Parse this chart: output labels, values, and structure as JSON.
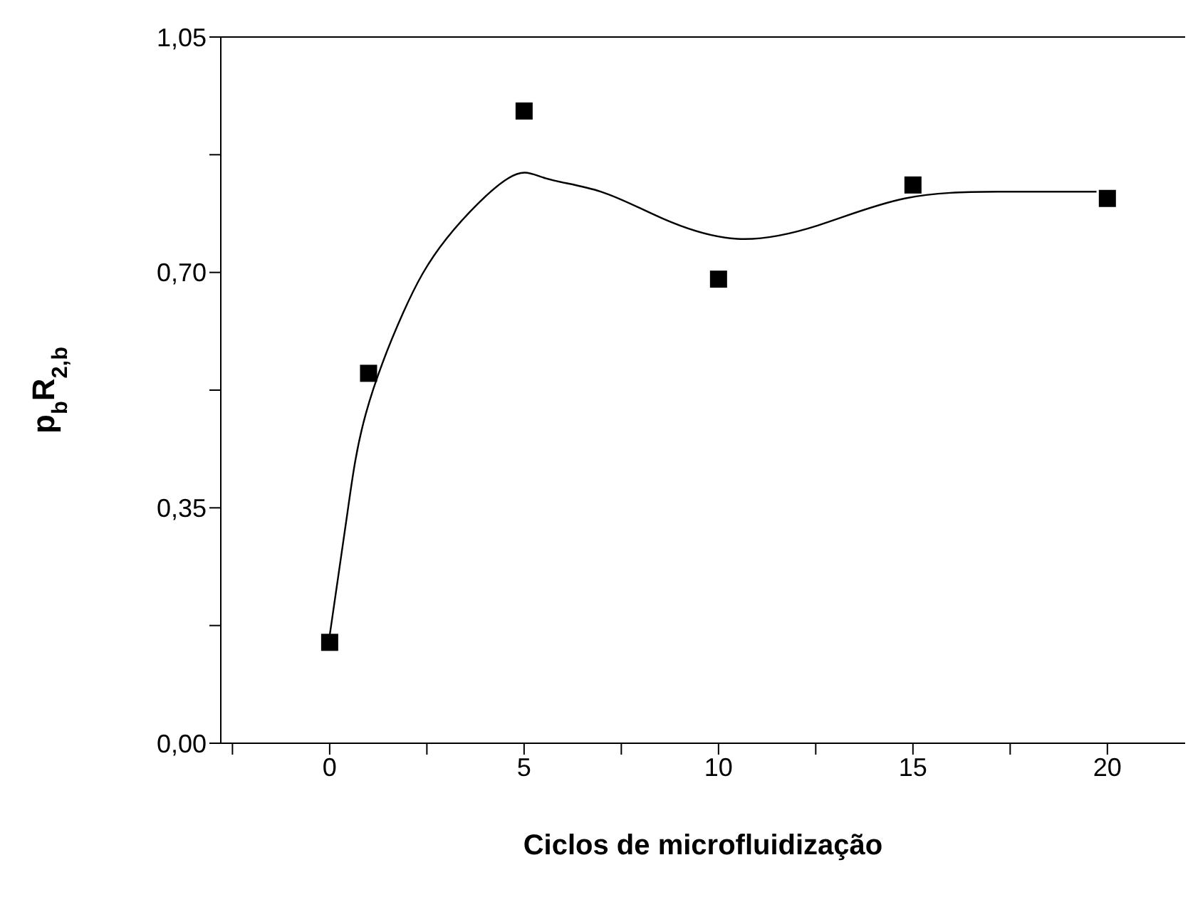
{
  "chart_data": {
    "type": "scatter",
    "xlabel": "Ciclos de microfluidização",
    "ylabel": "p$_{b}$R$_{2,b}$",
    "xlim": [
      -2.8,
      22
    ],
    "xticks": [
      {
        "value": -2.5,
        "label": null
      },
      0,
      {
        "value": 2.5,
        "label": null
      },
      5,
      {
        "value": 7.5,
        "label": null
      },
      10,
      {
        "value": 12.5,
        "label": null
      },
      15,
      {
        "value": 17.5,
        "label": null
      },
      20
    ],
    "ylim": [
      0,
      1.05
    ],
    "yticks": [
      {
        "value": 0,
        "label": "0,00"
      },
      {
        "value": 0.175,
        "label": null
      },
      {
        "value": 0.35,
        "label": "0,35"
      },
      {
        "value": 0.525,
        "label": null
      },
      {
        "value": 0.7,
        "label": "0,70"
      },
      {
        "value": 0.875,
        "label": null
      },
      {
        "value": 1.05,
        "label": "1,05"
      }
    ],
    "series": [
      {
        "color": "#000000",
        "marker": "square",
        "x": [
          0,
          1,
          5,
          10,
          15,
          20
        ],
        "values": [
          0.15,
          0.55,
          0.94,
          0.69,
          0.83,
          0.81
        ]
      },
      {
        "type": "line",
        "color": "#000000",
        "marker": "none",
        "line_style": "solid",
        "x": [
          0,
          0.45,
          0.93,
          1.89,
          3.0,
          4.59,
          5.55,
          6.98,
          8.57,
          10.48,
          12.56,
          14.79,
          17.18,
          19.72
        ],
        "values": [
          0.16,
          0.34,
          0.49,
          0.64,
          0.75,
          0.84,
          0.84,
          0.82,
          0.78,
          0.75,
          0.77,
          0.81,
          0.82,
          0.82
        ]
      }
    ],
    "grid": false
  }
}
